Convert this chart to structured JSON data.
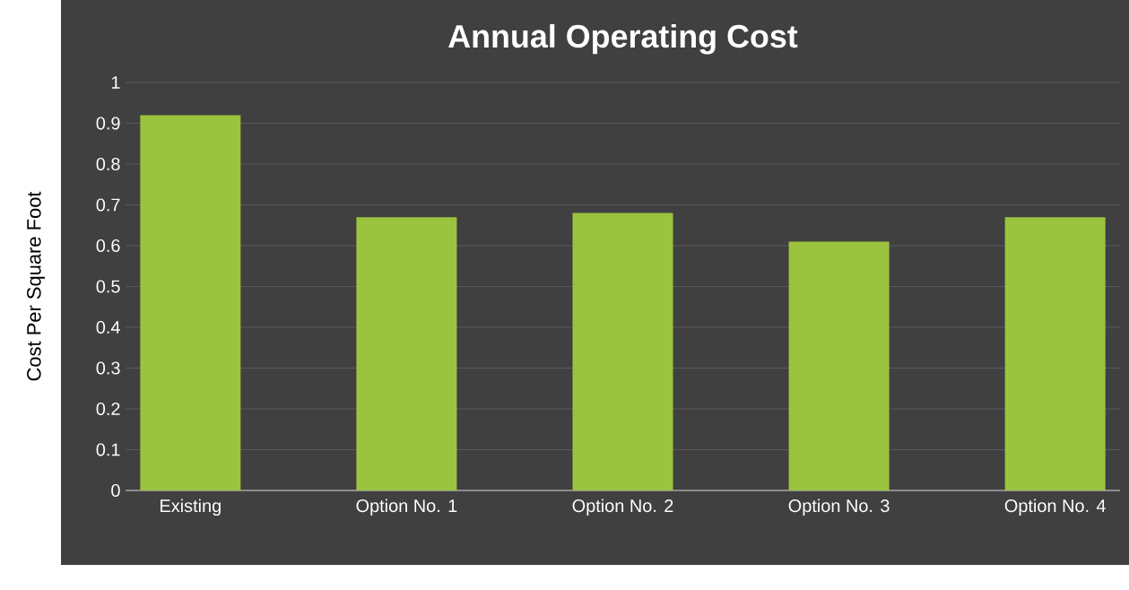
{
  "chart_data": {
    "type": "bar",
    "title": "Annual Operating Cost",
    "ylabel": "Cost Per Square Foot",
    "categories": [
      "Existing",
      "Option No. 1",
      "Option No. 2",
      "Option No. 3",
      "Option No. 4"
    ],
    "values": [
      0.92,
      0.67,
      0.68,
      0.61,
      0.67
    ],
    "color": "#9bc33f",
    "ylim": [
      0,
      1
    ],
    "yticks": [
      0,
      0.1,
      0.2,
      0.3,
      0.4,
      0.5,
      0.6,
      0.7,
      0.8,
      0.9,
      1
    ],
    "grid": "y"
  }
}
